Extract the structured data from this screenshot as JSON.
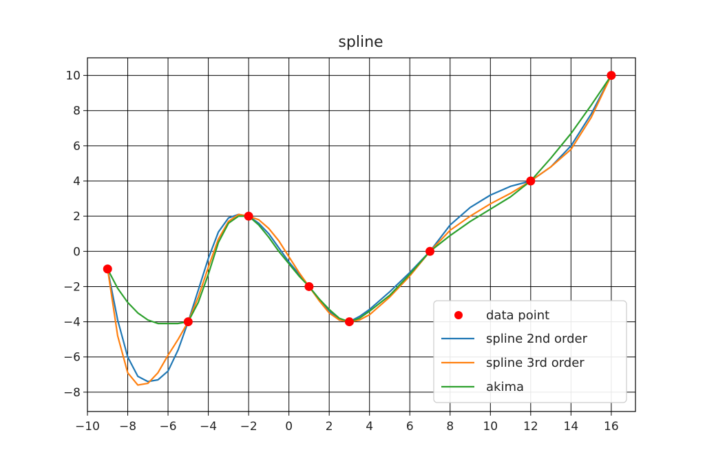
{
  "chart_data": {
    "type": "line",
    "title": "spline",
    "xlabel": "",
    "ylabel": "",
    "xlim": [
      -10,
      17.2
    ],
    "ylim": [
      -9.1,
      11.0
    ],
    "xticks": [
      -10,
      -8,
      -6,
      -4,
      -2,
      0,
      2,
      4,
      6,
      8,
      10,
      12,
      14,
      16
    ],
    "yticks": [
      -8,
      -6,
      -4,
      -2,
      0,
      2,
      4,
      6,
      8,
      10
    ],
    "grid": true,
    "legend_position": "bottom-right",
    "data_points": {
      "name": "data point",
      "color": "#ff0000",
      "x": [
        -9,
        -5,
        -2,
        1,
        3,
        7,
        12,
        16
      ],
      "y": [
        -1,
        -4,
        2,
        -2,
        -4,
        0,
        4,
        10
      ]
    },
    "series": [
      {
        "name": "spline 2nd order",
        "color": "#1f77b4",
        "x": [
          -9,
          -8.5,
          -8,
          -7.5,
          -7,
          -6.5,
          -6,
          -5.5,
          -5,
          -4.5,
          -4,
          -3.5,
          -3,
          -2.5,
          -2,
          -1.5,
          -1,
          -0.5,
          0,
          0.5,
          1,
          1.5,
          2,
          2.5,
          3,
          3.5,
          4,
          5,
          6,
          7,
          8,
          9,
          10,
          11,
          12,
          13,
          14,
          15,
          16
        ],
        "y": [
          -1,
          -3.9,
          -6,
          -7.1,
          -7.4,
          -7.3,
          -6.8,
          -5.6,
          -4,
          -2.2,
          -0.4,
          1.1,
          1.9,
          2.1,
          2,
          1.6,
          1,
          0.2,
          -0.6,
          -1.3,
          -2,
          -2.7,
          -3.4,
          -3.9,
          -4,
          -3.7,
          -3.3,
          -2.3,
          -1.2,
          0,
          1.5,
          2.5,
          3.2,
          3.7,
          4,
          4.8,
          6,
          7.8,
          10
        ]
      },
      {
        "name": "spline 3rd order",
        "color": "#ff7f0e",
        "x": [
          -9,
          -8.5,
          -8,
          -7.5,
          -7,
          -6.5,
          -6,
          -5.5,
          -5,
          -4.5,
          -4,
          -3.5,
          -3,
          -2.5,
          -2,
          -1.5,
          -1,
          -0.5,
          0,
          0.5,
          1,
          1.5,
          2,
          2.5,
          3,
          3.5,
          4,
          5,
          6,
          7,
          8,
          9,
          10,
          11,
          12,
          13,
          14,
          15,
          16
        ],
        "y": [
          -1,
          -4.8,
          -6.9,
          -7.6,
          -7.5,
          -6.9,
          -5.9,
          -5,
          -4,
          -2.6,
          -0.9,
          0.7,
          1.7,
          2.1,
          2,
          1.8,
          1.3,
          0.6,
          -0.3,
          -1.2,
          -2,
          -2.8,
          -3.5,
          -3.9,
          -4,
          -3.9,
          -3.6,
          -2.6,
          -1.4,
          0,
          1.2,
          2,
          2.7,
          3.3,
          4,
          4.8,
          5.8,
          7.6,
          10
        ]
      },
      {
        "name": "akima",
        "color": "#2ca02c",
        "x": [
          -9,
          -8.5,
          -8,
          -7.5,
          -7,
          -6.5,
          -6,
          -5.5,
          -5,
          -4.5,
          -4,
          -3.5,
          -3,
          -2.5,
          -2,
          -1.5,
          -1,
          -0.5,
          0,
          0.5,
          1,
          1.5,
          2,
          2.5,
          3,
          3.5,
          4,
          5,
          6,
          7,
          8,
          9,
          10,
          11,
          12,
          13,
          14,
          15,
          16
        ],
        "y": [
          -1,
          -2.1,
          -2.9,
          -3.5,
          -3.9,
          -4.1,
          -4.1,
          -4.1,
          -4,
          -2.9,
          -1.3,
          0.5,
          1.6,
          2,
          2,
          1.5,
          0.8,
          0,
          -0.7,
          -1.4,
          -2,
          -2.7,
          -3.3,
          -3.8,
          -4,
          -3.8,
          -3.4,
          -2.5,
          -1.3,
          0,
          0.9,
          1.7,
          2.4,
          3.1,
          4,
          5.3,
          6.7,
          8.3,
          10
        ]
      }
    ]
  }
}
